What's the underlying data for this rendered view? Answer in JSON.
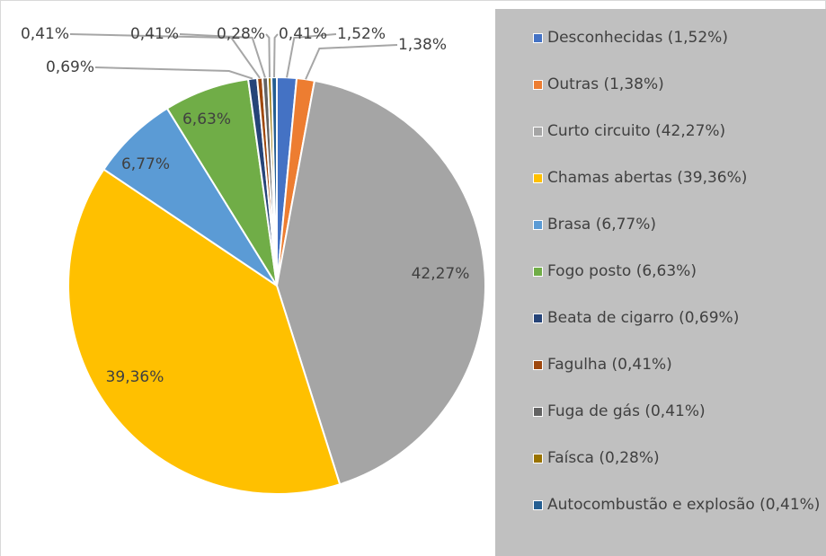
{
  "chart_data": {
    "type": "pie",
    "categories": [
      "Desconhecidas (1,52%)",
      "Outras (1,38%)",
      "Curto circuito (42,27%)",
      "Chamas abertas (39,36%)",
      "Brasa (6,77%)",
      "Fogo posto (6,63%)",
      "Beata de cigarro (0,69%)",
      "Fagulha (0,41%)",
      "Fuga de gás (0,41%)",
      "Faísca (0,28%)",
      "Autocombustão e explosão (0,41%)"
    ],
    "values": [
      1.52,
      1.38,
      42.27,
      39.36,
      6.77,
      6.63,
      0.69,
      0.41,
      0.41,
      0.28,
      0.41
    ],
    "value_labels": [
      "1,52%",
      "1,38%",
      "42,27%",
      "39,36%",
      "6,77%",
      "6,63%",
      "0,69%",
      "0,41%",
      "0,41%",
      "0,28%",
      "0,41%"
    ],
    "colors": [
      "#4472c4",
      "#ed7d31",
      "#a5a5a5",
      "#ffc000",
      "#5b9bd5",
      "#70ad47",
      "#264478",
      "#9e480e",
      "#636363",
      "#997300",
      "#255e91"
    ],
    "legend": "right"
  }
}
